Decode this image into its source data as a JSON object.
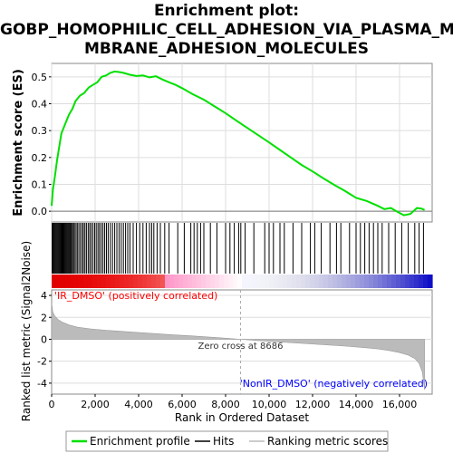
{
  "title_lines": [
    "Enrichment plot:",
    "GOBP_HOMOPHILIC_CELL_ADHESION_VIA_PLASMA_ME",
    "MBRANE_ADHESION_MOLECULES"
  ],
  "colors": {
    "es_line": "#00e000",
    "hits": "#000000",
    "metric_fill": "#bbbbbb",
    "pos_label": "#ff0000",
    "neg_label": "#0000ff"
  },
  "chart_data": {
    "type": "line",
    "title": "Enrichment plot: GOBP_HOMOPHILIC_CELL_ADHESION_VIA_PLASMA_MEMBRANE_ADHESION_MOLECULES",
    "xlabel": "Rank in Ordered Dataset",
    "xlim": [
      0,
      17500
    ],
    "x_ticks": [
      "0",
      "2,000",
      "4,000",
      "6,000",
      "8,000",
      "10,000",
      "12,000",
      "14,000",
      "16,000"
    ],
    "es_panel": {
      "ylabel": "Enrichment score (ES)",
      "ylim": [
        -0.04,
        0.55
      ],
      "y_ticks": [
        "0.0",
        "0.1",
        "0.2",
        "0.3",
        "0.4",
        "0.5"
      ],
      "series": [
        {
          "name": "Enrichment profile",
          "x": [
            0,
            60,
            150,
            250,
            350,
            450,
            550,
            650,
            800,
            950,
            1100,
            1300,
            1500,
            1700,
            1900,
            2100,
            2300,
            2500,
            2700,
            2900,
            3100,
            3300,
            3600,
            3900,
            4200,
            4500,
            4800,
            5100,
            5400,
            5700,
            6000,
            6500,
            7000,
            7500,
            8000,
            8500,
            9000,
            9500,
            10000,
            10500,
            11000,
            11500,
            12000,
            12500,
            13000,
            13500,
            14000,
            14500,
            15000,
            15300,
            15600,
            15900,
            16200,
            16500,
            16800,
            17000,
            17150
          ],
          "y": [
            0.02,
            0.08,
            0.13,
            0.19,
            0.24,
            0.29,
            0.31,
            0.33,
            0.36,
            0.38,
            0.41,
            0.43,
            0.44,
            0.46,
            0.47,
            0.48,
            0.5,
            0.505,
            0.515,
            0.52,
            0.518,
            0.515,
            0.508,
            0.503,
            0.505,
            0.498,
            0.502,
            0.49,
            0.48,
            0.47,
            0.458,
            0.435,
            0.415,
            0.39,
            0.365,
            0.337,
            0.31,
            0.283,
            0.256,
            0.228,
            0.2,
            0.172,
            0.148,
            0.122,
            0.098,
            0.075,
            0.05,
            0.038,
            0.02,
            0.008,
            0.012,
            -0.002,
            -0.015,
            -0.01,
            0.012,
            0.01,
            0.005
          ]
        }
      ]
    },
    "hits_panel": {
      "name": "Hits",
      "positions": [
        20,
        60,
        100,
        140,
        180,
        220,
        260,
        300,
        340,
        380,
        420,
        460,
        500,
        540,
        580,
        620,
        660,
        700,
        740,
        780,
        820,
        860,
        900,
        950,
        1000,
        1050,
        1120,
        1180,
        1250,
        1320,
        1400,
        1460,
        1530,
        1600,
        1680,
        1750,
        1820,
        1900,
        1980,
        2050,
        2130,
        2200,
        2280,
        2360,
        2440,
        2520,
        2600,
        2700,
        2800,
        2900,
        3000,
        3100,
        3200,
        3300,
        3400,
        3500,
        3600,
        3750,
        3900,
        4050,
        4200,
        4350,
        4500,
        4600,
        4700,
        4850,
        5000,
        5200,
        5400,
        5800,
        6100,
        6400,
        6550,
        6700,
        6850,
        7000,
        7300,
        7600,
        8000,
        8200,
        8400,
        8600,
        8700,
        8900,
        9300,
        9800,
        10000,
        10200,
        10500,
        10700,
        11100,
        11500,
        11900,
        12100,
        12400,
        12800,
        13100,
        13300,
        13700,
        14000,
        14200,
        14400,
        14600,
        14800,
        15000,
        15200,
        15500,
        15800,
        16100,
        16400,
        16700,
        16900,
        17100
      ]
    },
    "heat_bar": {
      "pos_label": "'IR_DMSO' (positively correlated)",
      "neg_label": "'NonIR_DMSO' (negatively correlated)"
    },
    "metric_panel": {
      "ylabel": "Ranked list metric (Signal2Noise)",
      "ylim": [
        -5,
        4.5
      ],
      "y_ticks": [
        "4",
        "2",
        "0",
        "-2",
        "-4"
      ],
      "zero_cross_label": "Zero cross at 8686",
      "zero_cross": 8686,
      "curve": {
        "x": [
          0,
          50,
          150,
          300,
          500,
          800,
          1200,
          1800,
          2500,
          3500,
          4500,
          5500,
          6500,
          7500,
          8686,
          9500,
          10500,
          11500,
          12500,
          13500,
          14500,
          15000,
          15500,
          16000,
          16400,
          16700,
          16900,
          17050,
          17150
        ],
        "y": [
          3.3,
          2.5,
          2.1,
          1.8,
          1.55,
          1.3,
          1.1,
          0.95,
          0.82,
          0.68,
          0.55,
          0.42,
          0.3,
          0.17,
          0.0,
          -0.12,
          -0.25,
          -0.37,
          -0.5,
          -0.62,
          -0.78,
          -0.88,
          -1.02,
          -1.22,
          -1.45,
          -1.75,
          -2.2,
          -3.0,
          -4.6
        ]
      }
    },
    "legend": {
      "items": [
        "Enrichment profile",
        "Hits",
        "Ranking metric scores"
      ],
      "placement": "bottom"
    }
  }
}
